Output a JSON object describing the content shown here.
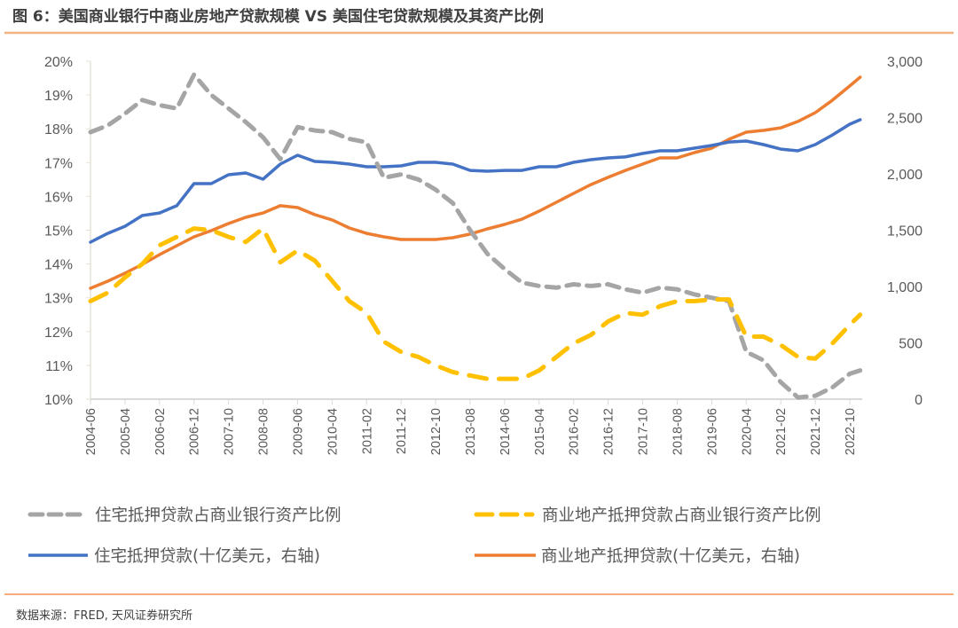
{
  "title": "图 6：美国商业银行中商业房地产贷款规模 VS 美国住宅贷款规模及其资产比例",
  "source": "数据来源：FRED, 天风证券研究所",
  "colors": {
    "gray": "#A5A5A5",
    "yellow": "#FFC000",
    "blue": "#4472C4",
    "orange": "#ED7D31",
    "rule": "#F4B183"
  },
  "chart_data": {
    "type": "line",
    "title": "",
    "xlabel": "",
    "grid": false,
    "legend_position": "bottom",
    "x_ticks": [
      "2004-06",
      "2005-04",
      "2006-02",
      "2006-12",
      "2007-10",
      "2008-08",
      "2009-06",
      "2010-04",
      "2011-02",
      "2011-12",
      "2012-10",
      "2013-08",
      "2014-06",
      "2015-04",
      "2016-02",
      "2016-12",
      "2017-10",
      "2018-08",
      "2019-06",
      "2020-04",
      "2021-02",
      "2021-12",
      "2022-10"
    ],
    "y_left": {
      "ticks": [
        "10%",
        "11%",
        "12%",
        "13%",
        "14%",
        "15%",
        "16%",
        "17%",
        "18%",
        "19%",
        "20%"
      ],
      "range": [
        10,
        20
      ],
      "unit": "%"
    },
    "y_right": {
      "ticks": [
        "0",
        "500",
        "1,000",
        "1,500",
        "2,000",
        "2,500",
        "3,000"
      ],
      "range": [
        0,
        3000
      ]
    },
    "x": [
      "2004-06",
      "2004-11",
      "2005-04",
      "2005-09",
      "2006-02",
      "2006-07",
      "2006-12",
      "2007-05",
      "2007-10",
      "2008-03",
      "2008-08",
      "2009-01",
      "2009-06",
      "2009-11",
      "2010-04",
      "2010-09",
      "2011-02",
      "2011-07",
      "2011-12",
      "2012-05",
      "2012-10",
      "2013-03",
      "2013-08",
      "2014-01",
      "2014-06",
      "2014-11",
      "2015-04",
      "2015-09",
      "2016-02",
      "2016-07",
      "2016-12",
      "2017-05",
      "2017-10",
      "2018-03",
      "2018-08",
      "2019-01",
      "2019-06",
      "2019-11",
      "2020-04",
      "2020-09",
      "2021-02",
      "2021-07",
      "2021-12",
      "2022-05",
      "2022-10",
      "2023-01"
    ],
    "series": [
      {
        "name": "住宅抵押贷款占商业银行资产比例",
        "axis": "left",
        "style": "dashed",
        "color": "#A5A5A5",
        "values": [
          17.9,
          18.1,
          18.45,
          18.85,
          18.7,
          18.6,
          19.6,
          19.0,
          18.6,
          18.2,
          17.75,
          17.1,
          18.05,
          17.95,
          17.9,
          17.7,
          17.6,
          16.55,
          16.65,
          16.5,
          16.2,
          15.8,
          15.0,
          14.3,
          13.85,
          13.45,
          13.35,
          13.3,
          13.4,
          13.35,
          13.4,
          13.25,
          13.15,
          13.3,
          13.25,
          13.1,
          13.0,
          12.9,
          11.4,
          11.15,
          10.5,
          10.05,
          10.1,
          10.35,
          10.75,
          10.85
        ]
      },
      {
        "name": "商业地产抵押贷款占商业银行资产比例",
        "axis": "left",
        "style": "dashed",
        "color": "#FFC000",
        "values": [
          12.9,
          13.15,
          13.6,
          14.0,
          14.55,
          14.8,
          15.05,
          15.0,
          14.8,
          14.65,
          15.05,
          14.05,
          14.4,
          14.1,
          13.5,
          12.9,
          12.55,
          11.7,
          11.4,
          11.25,
          11.0,
          10.8,
          10.7,
          10.6,
          10.6,
          10.6,
          10.85,
          11.25,
          11.65,
          11.9,
          12.3,
          12.55,
          12.5,
          12.75,
          12.9,
          12.9,
          12.95,
          12.95,
          11.85,
          11.85,
          11.6,
          11.25,
          11.2,
          11.65,
          12.2,
          12.5
        ]
      },
      {
        "name": "住宅抵押贷款(十亿美元，右轴)",
        "axis": "right",
        "style": "solid",
        "color": "#4472C4",
        "values": [
          1394,
          1472,
          1535,
          1630,
          1653,
          1717,
          1913,
          1913,
          1992,
          2008,
          1953,
          2087,
          2165,
          2110,
          2102,
          2087,
          2063,
          2063,
          2071,
          2102,
          2102,
          2087,
          2031,
          2024,
          2031,
          2031,
          2063,
          2063,
          2102,
          2126,
          2142,
          2150,
          2181,
          2205,
          2205,
          2228,
          2252,
          2283,
          2291,
          2260,
          2220,
          2205,
          2260,
          2346,
          2441,
          2480
        ]
      },
      {
        "name": "商业地产抵押贷款(十亿美元，右轴)",
        "axis": "right",
        "style": "solid",
        "color": "#ED7D31",
        "values": [
          984,
          1047,
          1118,
          1197,
          1283,
          1362,
          1441,
          1496,
          1559,
          1614,
          1653,
          1717,
          1701,
          1638,
          1591,
          1520,
          1472,
          1441,
          1417,
          1417,
          1417,
          1433,
          1465,
          1512,
          1551,
          1598,
          1669,
          1748,
          1827,
          1905,
          1969,
          2031,
          2087,
          2142,
          2142,
          2189,
          2228,
          2307,
          2370,
          2386,
          2409,
          2465,
          2543,
          2654,
          2780,
          2858
        ]
      }
    ]
  }
}
